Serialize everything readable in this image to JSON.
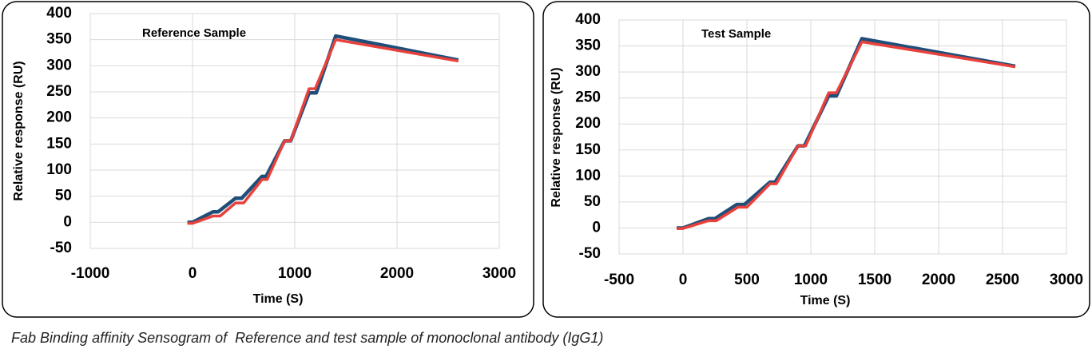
{
  "chart_data": [
    {
      "type": "line",
      "annotation": "Reference Sample",
      "xlabel": "Time (S)",
      "ylabel": "Relative response (RU)",
      "xlim": [
        -1000,
        3000
      ],
      "xticks": [
        -1000,
        0,
        1000,
        2000,
        3000
      ],
      "ylim": [
        -50,
        400
      ],
      "yticks": [
        -50,
        0,
        50,
        100,
        150,
        200,
        250,
        300,
        350,
        400
      ],
      "grid": true,
      "series": [
        {
          "color": "#1f4e79",
          "x": [
            -50,
            0,
            200,
            250,
            420,
            480,
            680,
            720,
            900,
            960,
            1140,
            1210,
            1400,
            2600
          ],
          "values": [
            0,
            0,
            20,
            20,
            46,
            46,
            88,
            88,
            156,
            156,
            248,
            248,
            357,
            311
          ]
        },
        {
          "color": "#e8413c",
          "x": [
            -50,
            0,
            200,
            270,
            420,
            500,
            680,
            730,
            900,
            960,
            1140,
            1200,
            1400,
            2600
          ],
          "values": [
            -2,
            -2,
            12,
            12,
            37,
            37,
            82,
            82,
            156,
            156,
            256,
            256,
            350,
            309
          ]
        }
      ]
    },
    {
      "type": "line",
      "annotation": "Test Sample",
      "xlabel": "Time (S)",
      "ylabel": "Relative response (RU)",
      "xlim": [
        -500,
        3000
      ],
      "xticks": [
        -500,
        0,
        500,
        1000,
        1500,
        2000,
        2500,
        3000
      ],
      "ylim": [
        -50,
        400
      ],
      "yticks": [
        -50,
        0,
        50,
        100,
        150,
        200,
        250,
        300,
        350,
        400
      ],
      "grid": true,
      "series": [
        {
          "color": "#1f4e79",
          "x": [
            -50,
            0,
            200,
            250,
            420,
            480,
            680,
            720,
            900,
            950,
            1140,
            1200,
            1400,
            2600
          ],
          "values": [
            0,
            0,
            18,
            18,
            45,
            45,
            88,
            88,
            158,
            158,
            254,
            254,
            364,
            311
          ]
        },
        {
          "color": "#e8413c",
          "x": [
            -50,
            0,
            200,
            260,
            430,
            500,
            680,
            730,
            900,
            960,
            1140,
            1200,
            1400,
            2600
          ],
          "values": [
            -1,
            -1,
            14,
            14,
            40,
            40,
            85,
            85,
            158,
            158,
            260,
            260,
            358,
            310
          ]
        }
      ]
    }
  ],
  "caption": "Fab Binding affinity Sensogram of  Reference and test sample of monoclonal antibody (IgG1)"
}
